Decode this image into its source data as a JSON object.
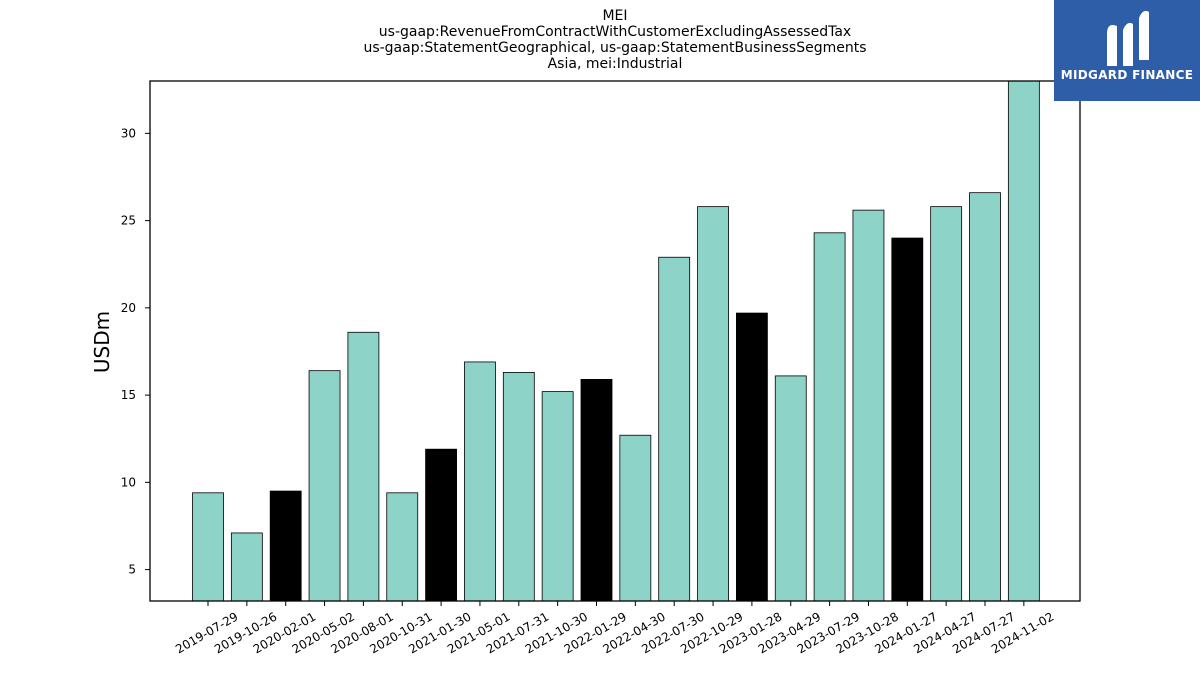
{
  "chart_data": {
    "type": "bar",
    "title_lines": [
      "MEI",
      "us-gaap:RevenueFromContractWithCustomerExcludingAssessedTax",
      "us-gaap:StatementGeographical, us-gaap:StatementBusinessSegments",
      "Asia, mei:Industrial"
    ],
    "ylabel": "USDm",
    "xlabel": "",
    "categories": [
      "2019-07-29",
      "2019-10-26",
      "2020-02-01",
      "2020-05-02",
      "2020-08-01",
      "2020-10-31",
      "2021-01-30",
      "2021-05-01",
      "2021-07-31",
      "2021-10-30",
      "2022-01-29",
      "2022-04-30",
      "2022-07-30",
      "2022-10-29",
      "2023-01-28",
      "2023-04-29",
      "2023-07-29",
      "2023-10-28",
      "2024-01-27",
      "2024-04-27",
      "2024-07-27",
      "2024-11-02"
    ],
    "values": [
      9.4,
      7.1,
      9.5,
      16.4,
      18.6,
      9.4,
      11.9,
      16.9,
      16.3,
      15.2,
      15.9,
      12.7,
      22.9,
      25.8,
      19.7,
      16.1,
      24.3,
      25.6,
      24.0,
      25.8,
      26.6,
      33.0
    ],
    "highlight": [
      false,
      false,
      true,
      false,
      false,
      false,
      true,
      false,
      false,
      false,
      true,
      false,
      false,
      false,
      true,
      false,
      false,
      false,
      true,
      false,
      false,
      false
    ],
    "colors": {
      "bar": "#8dd3c7",
      "highlight": "#000000",
      "edge": "#000000"
    },
    "yticks": [
      5,
      10,
      15,
      20,
      25,
      30
    ],
    "ylim": [
      3.2,
      33.0
    ],
    "grid": false
  },
  "logo": {
    "text": "MIDGARD FINANCE",
    "color": "#2f5ea8",
    "icon": "midgard-logo-icon"
  }
}
